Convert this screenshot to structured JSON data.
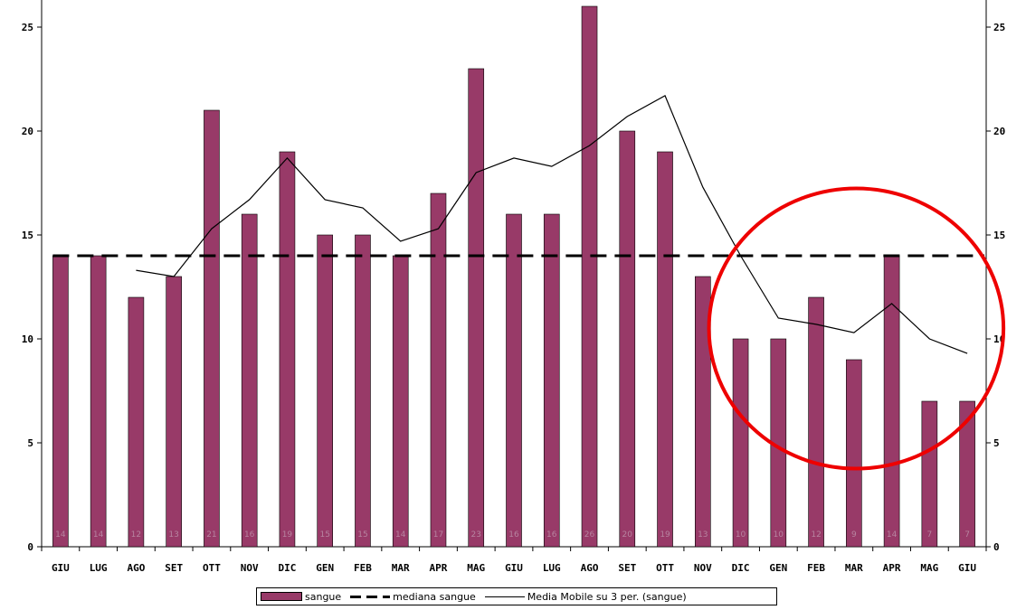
{
  "chart_data": {
    "type": "bar",
    "categories": [
      "GIU",
      "LUG",
      "AGO",
      "SET",
      "OTT",
      "NOV",
      "DIC",
      "GEN",
      "FEB",
      "MAR",
      "APR",
      "MAG",
      "GIU",
      "LUG",
      "AGO",
      "SET",
      "OTT",
      "NOV",
      "DIC",
      "GEN",
      "FEB",
      "MAR",
      "APR",
      "MAG",
      "GIU"
    ],
    "series": [
      {
        "name": "sangue",
        "type": "bar",
        "color": "#983a68",
        "values": [
          14,
          14,
          12,
          13,
          21,
          16,
          19,
          15,
          15,
          14,
          17,
          23,
          16,
          16,
          26,
          20,
          19,
          13,
          10,
          10,
          12,
          9,
          14,
          7,
          7
        ]
      },
      {
        "name": "mediana sangue",
        "type": "line",
        "style": "dashed",
        "color": "#000000",
        "values": [
          14,
          14,
          14,
          14,
          14,
          14,
          14,
          14,
          14,
          14,
          14,
          14,
          14,
          14,
          14,
          14,
          14,
          14,
          14,
          14,
          14,
          14,
          14,
          14,
          14
        ]
      },
      {
        "name": "Media Mobile su 3 per. (sangue)",
        "type": "line",
        "color": "#000000",
        "values": [
          null,
          null,
          13.3,
          13.0,
          15.3,
          16.7,
          18.7,
          16.7,
          16.3,
          14.7,
          15.3,
          18.0,
          18.7,
          18.3,
          19.3,
          20.7,
          21.7,
          17.3,
          14.0,
          11.0,
          10.7,
          10.3,
          11.7,
          10.0,
          9.3
        ]
      }
    ],
    "bar_labels": [
      "14",
      "14",
      "12",
      "13",
      "21",
      "16",
      "19",
      "15",
      "15",
      "14",
      "17",
      "23",
      "16",
      "16",
      "26",
      "20",
      "19",
      "13",
      "10",
      "10",
      "12",
      "9",
      "14",
      "7",
      "7"
    ],
    "y_ticks": [
      "0",
      "5",
      "10",
      "15",
      "20",
      "25"
    ],
    "y_ticks_right": [
      "0",
      "5",
      "10",
      "15",
      "20",
      "25"
    ],
    "ylim": [
      0,
      26
    ],
    "legend": {
      "position": "bottom",
      "entries": [
        "sangue",
        "mediana sangue",
        "Media Mobile su 3 per. (sangue)"
      ]
    },
    "annotation": {
      "shape": "circle",
      "color": "#ee0000",
      "encloses": [
        "DIC",
        "GEN",
        "FEB",
        "MAR",
        "APR",
        "MAG",
        "GIU"
      ]
    }
  }
}
